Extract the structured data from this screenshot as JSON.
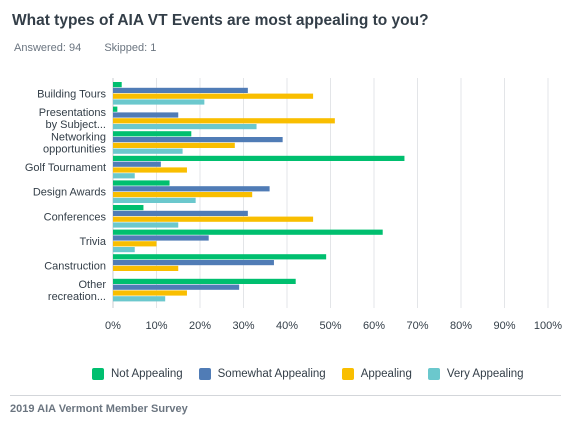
{
  "title": "What types of AIA VT Events are most appealing to you?",
  "answered": "Answered: 94",
  "skipped": "Skipped: 1",
  "footer": "2019 AIA Vermont Member Survey",
  "chart_data": {
    "type": "bar",
    "orientation": "horizontal",
    "categories": [
      [
        "Building Tours"
      ],
      [
        "Presentations",
        "by Subject..."
      ],
      [
        "Networking",
        "opportunities"
      ],
      [
        "Golf Tournament"
      ],
      [
        "Design Awards"
      ],
      [
        "Conferences"
      ],
      [
        "Trivia"
      ],
      [
        "Canstruction"
      ],
      [
        "Other",
        "recreation..."
      ]
    ],
    "series": [
      {
        "name": "Not Appealing",
        "color": "#00bf6f",
        "values": [
          2,
          1,
          18,
          67,
          13,
          7,
          62,
          49,
          42
        ]
      },
      {
        "name": "Somewhat Appealing",
        "color": "#507cb6",
        "values": [
          31,
          15,
          39,
          11,
          36,
          31,
          22,
          37,
          29
        ]
      },
      {
        "name": "Appealing",
        "color": "#f9be00",
        "values": [
          46,
          51,
          28,
          17,
          32,
          46,
          10,
          15,
          17
        ]
      },
      {
        "name": "Very Appealing",
        "color": "#6bc8cd",
        "values": [
          21,
          33,
          16,
          5,
          19,
          15,
          5,
          0,
          12
        ]
      }
    ],
    "xticks": [
      "0%",
      "10%",
      "20%",
      "30%",
      "40%",
      "50%",
      "60%",
      "70%",
      "80%",
      "90%",
      "100%"
    ],
    "xlim": [
      0,
      100
    ],
    "grid": true,
    "legend_position": "bottom"
  }
}
